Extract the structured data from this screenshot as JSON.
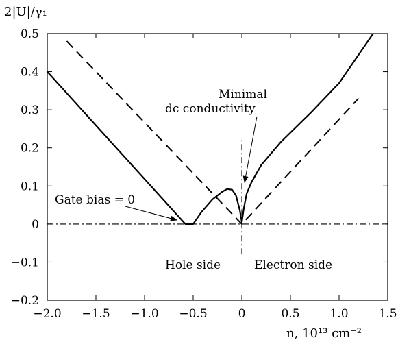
{
  "chart_data": {
    "type": "line",
    "ylabel": "2|U|/γ₁",
    "xlabel": "n,  10¹³ cm⁻²",
    "xlim": [
      -2.0,
      1.5
    ],
    "ylim": [
      -0.2,
      0.5
    ],
    "x_ticks": [
      "−2.0",
      "−1.5",
      "−1.0",
      "−0.5",
      "0",
      "0.5",
      "1.0",
      "1.5"
    ],
    "x_tick_values": [
      -2.0,
      -1.5,
      -1.0,
      -0.5,
      0,
      0.5,
      1.0,
      1.5
    ],
    "y_ticks": [
      "−0.2",
      "−0.1",
      "0",
      "0.1",
      "0.2",
      "0.3",
      "0.4",
      "0.5"
    ],
    "y_tick_values": [
      -0.2,
      -0.1,
      0,
      0.1,
      0.2,
      0.3,
      0.4,
      0.5
    ],
    "grid": false,
    "series": [
      {
        "style": "solid",
        "color": "#000000",
        "x": [
          -2.0,
          -0.58,
          -0.5,
          -0.42,
          -0.3,
          -0.2,
          -0.15,
          -0.1,
          -0.06,
          -0.02,
          0.0,
          0.02,
          0.05,
          0.1,
          0.2,
          0.4,
          0.7,
          1.0,
          1.35
        ],
        "y": [
          0.4,
          0.0,
          0.0,
          0.03,
          0.065,
          0.085,
          0.092,
          0.09,
          0.075,
          0.035,
          0.005,
          0.04,
          0.08,
          0.11,
          0.155,
          0.215,
          0.29,
          0.37,
          0.5
        ]
      },
      {
        "style": "dashed",
        "color": "#000000",
        "x": [
          -1.8,
          0.0,
          1.2
        ],
        "y": [
          0.48,
          0.0,
          0.33
        ]
      },
      {
        "style": "dash-dot",
        "color": "#000000",
        "x": [
          -2.0,
          1.5
        ],
        "y": [
          0.0,
          0.0
        ]
      },
      {
        "style": "dash-dot",
        "color": "#000000",
        "x": [
          0.0,
          0.0
        ],
        "y": [
          -0.08,
          0.22
        ]
      }
    ],
    "annotations": {
      "minimal": "Minimal",
      "dc": "dc conductivity",
      "gate": "Gate bias = 0",
      "hole": "Hole side",
      "electron": "Electron side"
    }
  }
}
